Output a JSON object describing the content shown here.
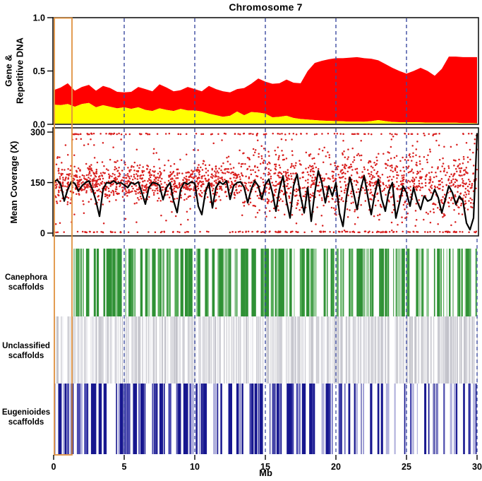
{
  "title": "Chromosome 7",
  "x_axis": {
    "label": "Mb",
    "ticks": [
      0,
      5,
      10,
      15,
      20,
      25,
      30
    ],
    "range_mb": [
      0,
      30
    ]
  },
  "gridlines": {
    "positions_mb": [
      5,
      10,
      15,
      20,
      25
    ],
    "scaffold_positions_mb": [
      5,
      10,
      15,
      20,
      25,
      30
    ],
    "color": "#3c4ba1",
    "style": "dashed"
  },
  "highlight_box": {
    "x_start_mb": 0.05,
    "x_end_mb": 1.3,
    "color": "#e0923f"
  },
  "chart_data": [
    {
      "id": "gene_repeat",
      "type": "area",
      "ylabel": "Gene &\nRepetitive DNA",
      "ylim": [
        0,
        1
      ],
      "ytick_labels": [
        "0.0",
        "0.5",
        "1.0"
      ],
      "ytick_values": [
        0,
        0.5,
        1
      ],
      "x_start_mb": 0,
      "x_step_mb": 0.5,
      "series": [
        {
          "name": "Repetitive DNA",
          "color": "#ff0000",
          "stack_top_values": [
            0.32,
            0.345,
            0.385,
            0.315,
            0.35,
            0.37,
            0.315,
            0.36,
            0.34,
            0.305,
            0.3,
            0.305,
            0.35,
            0.33,
            0.31,
            0.375,
            0.345,
            0.31,
            0.32,
            0.35,
            0.33,
            0.31,
            0.36,
            0.33,
            0.31,
            0.3,
            0.33,
            0.34,
            0.38,
            0.43,
            0.4,
            0.38,
            0.385,
            0.42,
            0.39,
            0.385,
            0.5,
            0.575,
            0.595,
            0.61,
            0.62,
            0.62,
            0.625,
            0.63,
            0.62,
            0.615,
            0.6,
            0.565,
            0.53,
            0.5,
            0.475,
            0.5,
            0.53,
            0.5,
            0.455,
            0.52,
            0.635,
            0.635,
            0.63,
            0.63,
            0.63
          ]
        },
        {
          "name": "Gene",
          "color": "#ffff00",
          "stack_top_values": [
            0.185,
            0.18,
            0.19,
            0.165,
            0.19,
            0.2,
            0.16,
            0.18,
            0.165,
            0.15,
            0.16,
            0.145,
            0.16,
            0.135,
            0.125,
            0.15,
            0.135,
            0.125,
            0.145,
            0.13,
            0.13,
            0.12,
            0.1,
            0.085,
            0.07,
            0.08,
            0.12,
            0.085,
            0.115,
            0.11,
            0.1,
            0.065,
            0.07,
            0.08,
            0.06,
            0.05,
            0.045,
            0.04,
            0.035,
            0.032,
            0.03,
            0.028,
            0.025,
            0.025,
            0.024,
            0.03,
            0.04,
            0.03,
            0.022,
            0.02,
            0.02,
            0.02,
            0.018,
            0.016,
            0.016,
            0.015,
            0.015,
            0.015,
            0.012,
            0.012,
            0.01
          ]
        }
      ]
    },
    {
      "id": "coverage",
      "type": "scatter_line",
      "ylabel": "Mean Coverage (X)",
      "ylim": [
        0,
        300
      ],
      "ytick_labels": [
        "0",
        "150",
        "300"
      ],
      "ytick_values": [
        0,
        150,
        300
      ],
      "scatter": {
        "color": "#d9201f",
        "approx_n_points": 2400,
        "band_center": 150,
        "band_spread_left_half": 26,
        "band_spread_right_half": 45,
        "capped_top_row_value": 296,
        "capped_bottom_row_value": 2,
        "note": "dense red dots per window; values capped at 0 and 300 form rows on panel edges"
      },
      "smoothed_line": {
        "color": "#000000",
        "x_start_mb": 0,
        "x_step_mb": 0.25,
        "values": [
          152,
          158,
          145,
          95,
          130,
          152,
          148,
          125,
          140,
          150,
          155,
          130,
          95,
          50,
          130,
          150,
          148,
          155,
          147,
          150,
          143,
          135,
          150,
          145,
          152,
          120,
          86,
          135,
          150,
          148,
          142,
          99,
          135,
          150,
          95,
          61,
          130,
          150,
          145,
          152,
          148,
          80,
          55,
          120,
          150,
          75,
          135,
          152,
          145,
          155,
          100,
          140,
          150,
          152,
          135,
          90,
          130,
          155,
          140,
          100,
          145,
          160,
          120,
          65,
          130,
          170,
          95,
          45,
          140,
          175,
          110,
          60,
          135,
          35,
          120,
          185,
          150,
          90,
          140,
          110,
          150,
          60,
          20,
          110,
          165,
          120,
          70,
          130,
          170,
          110,
          55,
          115,
          160,
          100,
          65,
          125,
          150,
          45,
          90,
          140,
          120,
          80,
          135,
          95,
          70,
          110,
          95,
          100,
          130,
          105,
          60,
          100,
          140,
          120,
          85,
          110,
          95,
          30,
          10,
          45,
          295
        ]
      }
    },
    {
      "id": "canephora",
      "type": "barcode",
      "label": "Canephora\nscaffolds",
      "color": "#2f9135",
      "mid_color": "#54ab57",
      "light_color": "#9ccf9e",
      "x_start_mb": 1.3,
      "coverage_fraction_per_mb": [
        0,
        0.5,
        0.85,
        0.8,
        0.85,
        0.8,
        0.78,
        0.85,
        0.88,
        0.82,
        0.8,
        0.83,
        0.8,
        0.78,
        0.72,
        0.78,
        0.72,
        0.7,
        0.68,
        0.6,
        0.45,
        0.72,
        0.65,
        0.7,
        0.68,
        0.55,
        0.5,
        0.55,
        0.6,
        0.68
      ]
    },
    {
      "id": "unclassified",
      "type": "barcode",
      "label": "Unclassified\nscaffolds",
      "color": "#c2c2ca",
      "mid_color": "#d8d8de",
      "light_color": "#ebebf1",
      "x_start_mb": 0,
      "coverage_fraction_per_mb": [
        0.22,
        0.25,
        0.25,
        0.28,
        0.25,
        0.3,
        0.25,
        0.25,
        0.3,
        0.25,
        0.25,
        0.3,
        0.25,
        0.3,
        0.25,
        0.3,
        0.3,
        0.25,
        0.3,
        0.3,
        0.35,
        0.3,
        0.35,
        0.3,
        0.35,
        0.3,
        0.35,
        0.45,
        0.5,
        0.45
      ]
    },
    {
      "id": "eugenioides",
      "type": "barcode",
      "label": "Eugenioides\nscaffolds",
      "color": "#17178f",
      "mid_color": "#4a4ab0",
      "light_color": "#b0b0dc",
      "x_start_mb": 0,
      "coverage_fraction_per_mb": [
        0.95,
        0.8,
        0.75,
        0.7,
        0.75,
        0.7,
        0.65,
        0.75,
        0.7,
        0.75,
        0.7,
        0.65,
        0.7,
        0.65,
        0.75,
        0.8,
        0.85,
        0.8,
        0.75,
        0.6,
        0.55,
        0.35,
        0.3,
        0.45,
        0.25,
        0.2,
        0.25,
        0.35,
        0.4,
        0.45
      ]
    }
  ]
}
